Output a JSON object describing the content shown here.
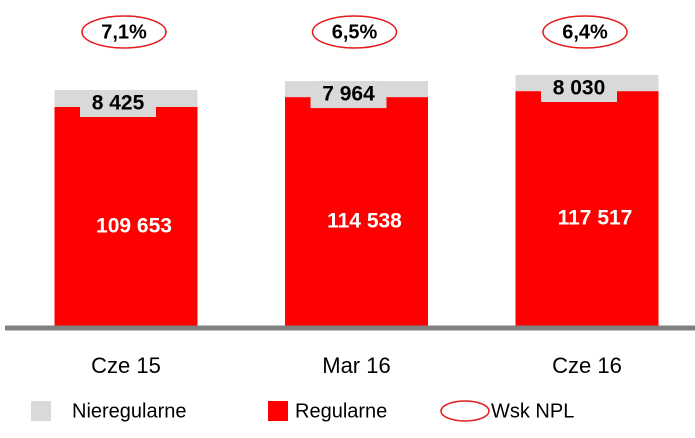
{
  "chart_data": {
    "type": "stacked_bar",
    "categories": [
      "Cze 15",
      "Mar 16",
      "Cze 16"
    ],
    "series": [
      {
        "name": "Nieregularne",
        "color": "#d9d9d9",
        "values": [
          8425,
          7964,
          8030
        ],
        "value_labels": [
          "8 425",
          "7 964",
          "8 030"
        ]
      },
      {
        "name": "Regularne",
        "color": "#ff0000",
        "values": [
          109653,
          114538,
          117517
        ],
        "value_labels": [
          "109 653",
          "114 538",
          "117 517"
        ]
      }
    ],
    "npl": {
      "name": "Wsk NPL",
      "color": "#e31c1c",
      "values": [
        7.1,
        6.5,
        6.4
      ],
      "value_labels": [
        "7,1%",
        "6,5%",
        "6,4%"
      ]
    },
    "legend": "bottom"
  }
}
